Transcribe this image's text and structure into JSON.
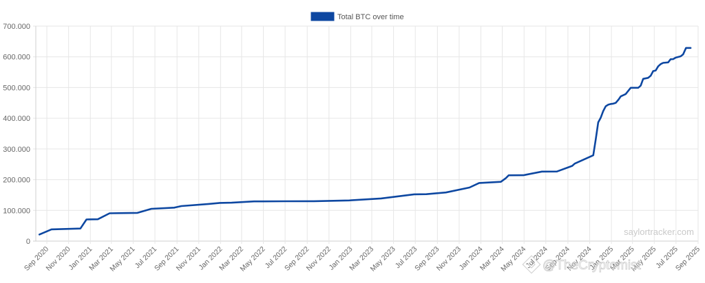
{
  "legend": {
    "label": "Total BTC over time",
    "color": "#0d47a1"
  },
  "watermarks": {
    "site": "saylortracker.com",
    "overlay": "@TheCryptomist"
  },
  "chart_data": {
    "type": "line",
    "series": [
      {
        "name": "Total BTC over time",
        "color": "#0d47a1",
        "points": [
          [
            "2020-08-11",
            21454
          ],
          [
            "2020-09-14",
            38250
          ],
          [
            "2020-12-04",
            40824
          ],
          [
            "2020-12-21",
            70470
          ],
          [
            "2021-01-22",
            71079
          ],
          [
            "2021-02-24",
            90531
          ],
          [
            "2021-04-05",
            91326
          ],
          [
            "2021-05-13",
            91850
          ],
          [
            "2021-06-21",
            105085
          ],
          [
            "2021-08-24",
            108992
          ],
          [
            "2021-09-13",
            114042
          ],
          [
            "2021-11-29",
            121044
          ],
          [
            "2021-12-30",
            124391
          ],
          [
            "2022-02-01",
            125051
          ],
          [
            "2022-04-05",
            129218
          ],
          [
            "2022-06-29",
            129699
          ],
          [
            "2022-09-20",
            130000
          ],
          [
            "2022-12-27",
            132500
          ],
          [
            "2023-03-27",
            138955
          ],
          [
            "2023-06-28",
            152333
          ],
          [
            "2023-08-01",
            152800
          ],
          [
            "2023-09-25",
            158245
          ],
          [
            "2023-11-30",
            174530
          ],
          [
            "2023-12-27",
            189150
          ],
          [
            "2024-02-26",
            193000
          ],
          [
            "2024-03-11",
            205000
          ],
          [
            "2024-03-19",
            214246
          ],
          [
            "2024-04-29",
            214400
          ],
          [
            "2024-06-20",
            226331
          ],
          [
            "2024-08-01",
            226500
          ],
          [
            "2024-09-13",
            244800
          ],
          [
            "2024-09-20",
            252220
          ],
          [
            "2024-11-11",
            279420
          ],
          [
            "2024-11-18",
            331200
          ],
          [
            "2024-11-25",
            386700
          ],
          [
            "2024-12-02",
            402100
          ],
          [
            "2024-12-09",
            423650
          ],
          [
            "2024-12-16",
            439000
          ],
          [
            "2024-12-23",
            444262
          ],
          [
            "2024-12-30",
            446400
          ],
          [
            "2025-01-06",
            447470
          ],
          [
            "2025-01-13",
            450000
          ],
          [
            "2025-01-21",
            461000
          ],
          [
            "2025-01-27",
            471107
          ],
          [
            "2025-02-10",
            478740
          ],
          [
            "2025-02-24",
            499096
          ],
          [
            "2025-03-17",
            499226
          ],
          [
            "2025-03-24",
            506137
          ],
          [
            "2025-03-31",
            528185
          ],
          [
            "2025-04-14",
            531644
          ],
          [
            "2025-04-21",
            538200
          ],
          [
            "2025-04-28",
            553555
          ],
          [
            "2025-05-05",
            555450
          ],
          [
            "2025-05-12",
            568840
          ],
          [
            "2025-05-19",
            576230
          ],
          [
            "2025-05-26",
            580250
          ],
          [
            "2025-06-09",
            582000
          ],
          [
            "2025-06-16",
            592100
          ],
          [
            "2025-06-23",
            592345
          ],
          [
            "2025-06-30",
            597325
          ],
          [
            "2025-07-14",
            601550
          ],
          [
            "2025-07-21",
            607770
          ],
          [
            "2025-07-29",
            628791
          ],
          [
            "2025-08-11",
            628946
          ]
        ]
      }
    ],
    "y_ticks": [
      "0",
      "100.000",
      "200.000",
      "300.000",
      "400.000",
      "500.000",
      "600.000",
      "700.000"
    ],
    "y_tick_values": [
      0,
      100000,
      200000,
      300000,
      400000,
      500000,
      600000,
      700000
    ],
    "ylim": [
      0,
      700000
    ],
    "x_ticks": [
      {
        "label": "Sep 2020",
        "date": "2020-09-01"
      },
      {
        "label": "Nov 2020",
        "date": "2020-11-01"
      },
      {
        "label": "Jan 2021",
        "date": "2021-01-01"
      },
      {
        "label": "Mar 2021",
        "date": "2021-03-01"
      },
      {
        "label": "May 2021",
        "date": "2021-05-01"
      },
      {
        "label": "Jul 2021",
        "date": "2021-07-01"
      },
      {
        "label": "Sep 2021",
        "date": "2021-09-01"
      },
      {
        "label": "Nov 2021",
        "date": "2021-11-01"
      },
      {
        "label": "Jan 2022",
        "date": "2022-01-01"
      },
      {
        "label": "Mar 2022",
        "date": "2022-03-01"
      },
      {
        "label": "May 2022",
        "date": "2022-05-01"
      },
      {
        "label": "Jul 2022",
        "date": "2022-07-01"
      },
      {
        "label": "Sep 2022",
        "date": "2022-09-01"
      },
      {
        "label": "Nov 2022",
        "date": "2022-11-01"
      },
      {
        "label": "Jan 2023",
        "date": "2023-01-01"
      },
      {
        "label": "Mar 2023",
        "date": "2023-03-01"
      },
      {
        "label": "May 2023",
        "date": "2023-05-01"
      },
      {
        "label": "Jul 2023",
        "date": "2023-07-01"
      },
      {
        "label": "Sep 2023",
        "date": "2023-09-01"
      },
      {
        "label": "Nov 2023",
        "date": "2023-11-01"
      },
      {
        "label": "Jan 2024",
        "date": "2024-01-01"
      },
      {
        "label": "Mar 2024",
        "date": "2024-03-01"
      },
      {
        "label": "May 2024",
        "date": "2024-05-01"
      },
      {
        "label": "Jul 2024",
        "date": "2024-07-01"
      },
      {
        "label": "Sep 2024",
        "date": "2024-09-01"
      },
      {
        "label": "Nov 2024",
        "date": "2024-11-01"
      },
      {
        "label": "Jan 2025",
        "date": "2025-01-01"
      },
      {
        "label": "Mar 2025",
        "date": "2025-03-01"
      },
      {
        "label": "May 2025",
        "date": "2025-05-01"
      },
      {
        "label": "Jul 2025",
        "date": "2025-07-01"
      },
      {
        "label": "Sep 2025",
        "date": "2025-09-01"
      }
    ],
    "xlim": [
      "2020-08-01",
      "2025-09-01"
    ],
    "grid": true,
    "legend_position": "top-center"
  }
}
